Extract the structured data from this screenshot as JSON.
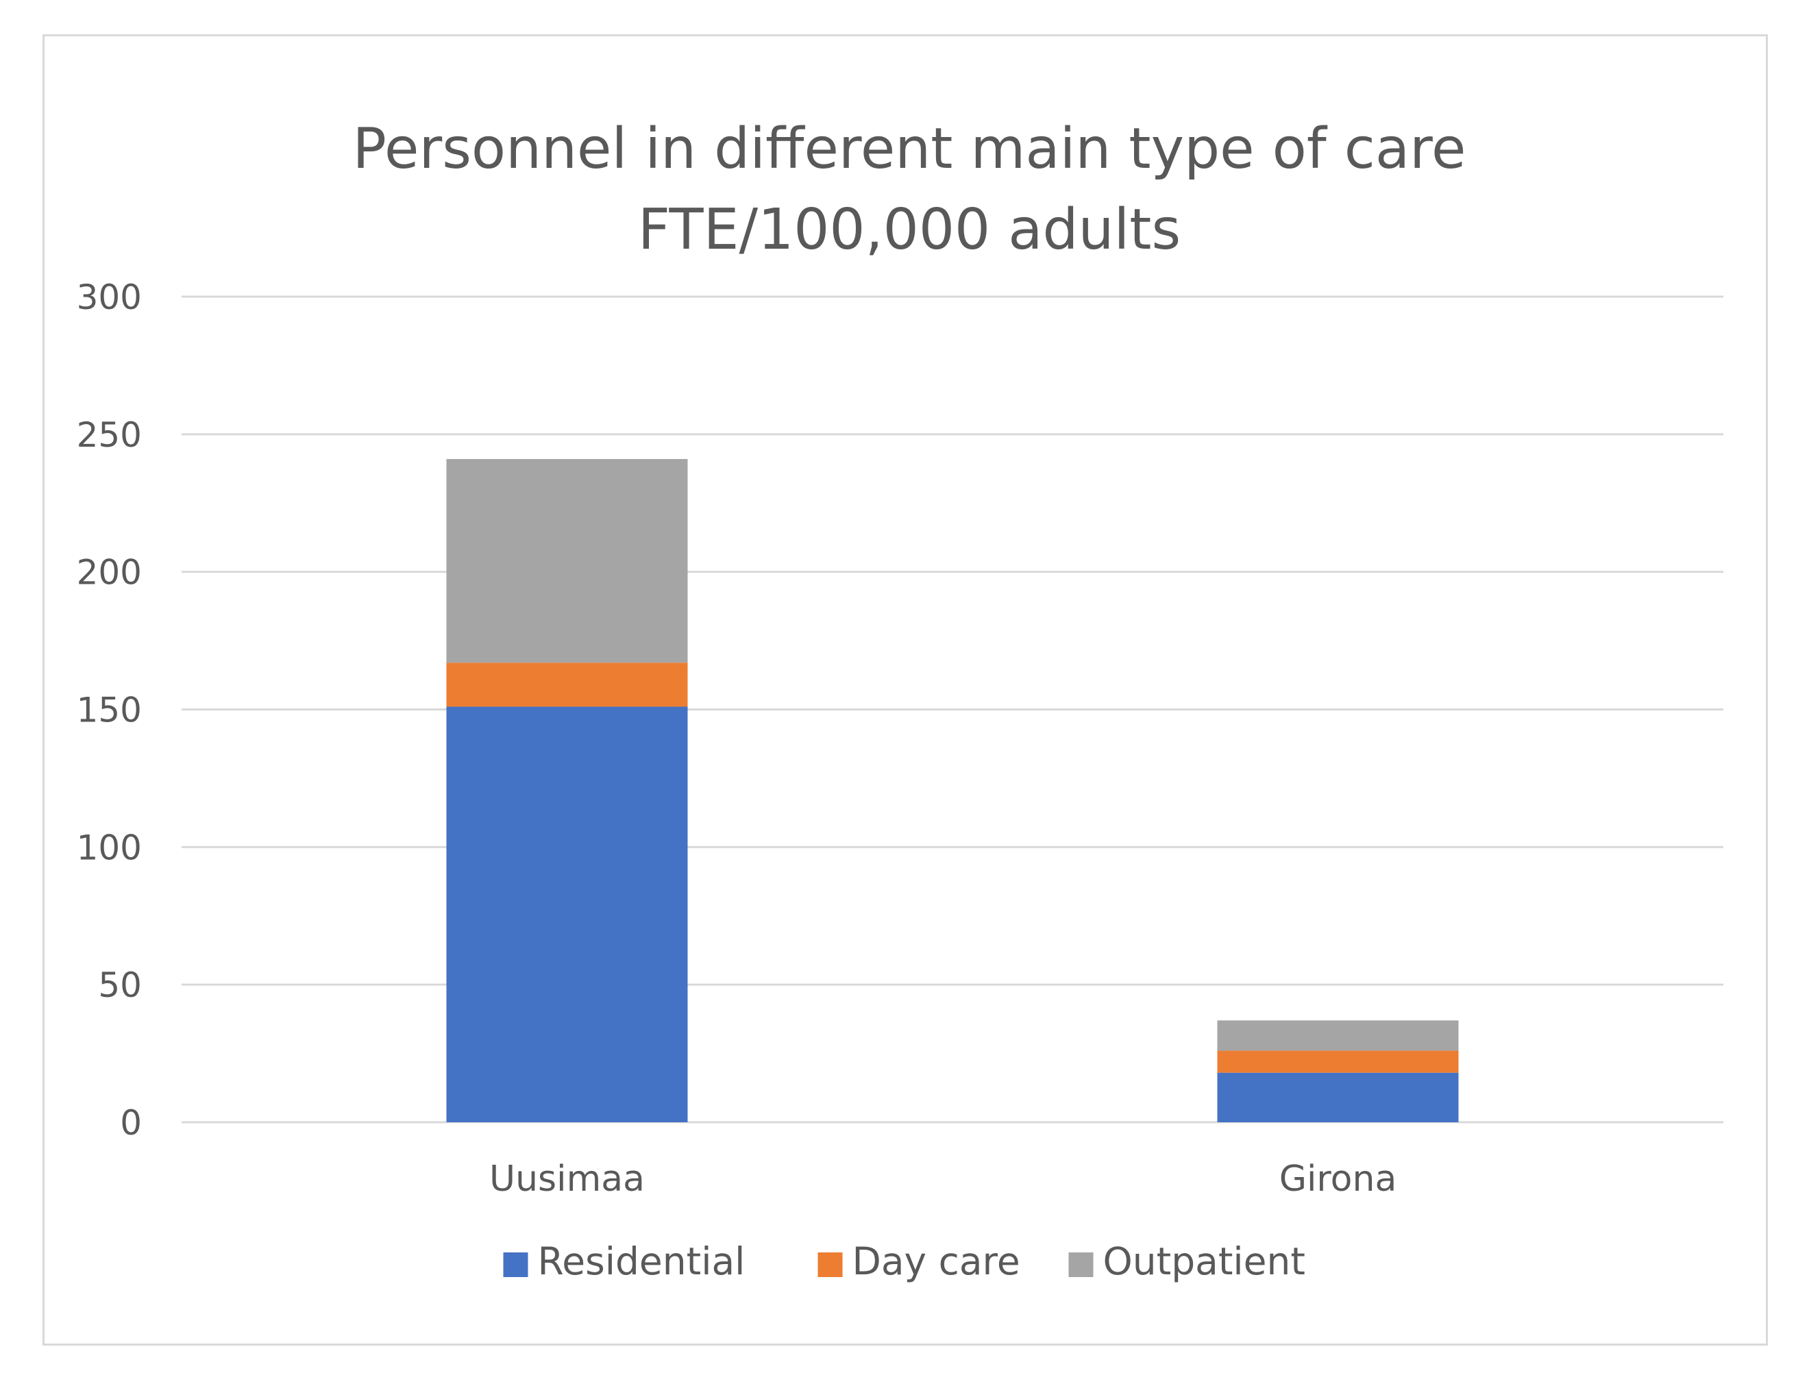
{
  "chart_data": {
    "type": "bar",
    "stacked": true,
    "title_lines": [
      "Personnel in different main type of care",
      "FTE/100,000 adults"
    ],
    "categories": [
      "Uusimaa",
      "Girona"
    ],
    "series": [
      {
        "name": "Residential",
        "color": "#4472c4",
        "values": [
          151,
          18
        ]
      },
      {
        "name": "Day care",
        "color": "#ed7d31",
        "values": [
          16,
          8
        ]
      },
      {
        "name": "Outpatient",
        "color": "#a5a5a5",
        "values": [
          74,
          11
        ]
      }
    ],
    "yticks": [
      "0",
      "50",
      "100",
      "150",
      "200",
      "250",
      "300"
    ],
    "ylim": [
      0,
      300
    ],
    "grid": true,
    "legend_position": "bottom"
  }
}
